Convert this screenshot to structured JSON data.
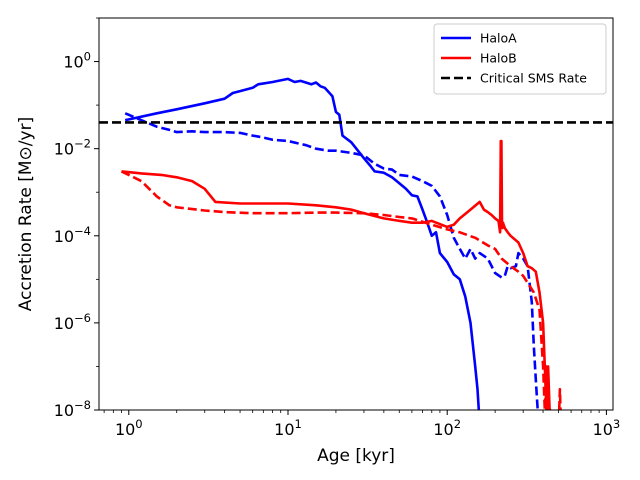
{
  "chart_data": {
    "type": "line",
    "xlabel": "Age [kyr]",
    "ylabel": "Accretion Rate [M⊙/yr]",
    "xscale": "log",
    "yscale": "log",
    "xlim": [
      0.65,
      1100
    ],
    "ylim": [
      1e-08,
      10
    ],
    "grid": false,
    "legend_position": "top-right",
    "x_ticks": [
      {
        "value": 1,
        "base": "10",
        "exp": "0"
      },
      {
        "value": 10,
        "base": "10",
        "exp": "1"
      },
      {
        "value": 100,
        "base": "10",
        "exp": "2"
      },
      {
        "value": 1000,
        "base": "10",
        "exp": "3"
      }
    ],
    "y_ticks": [
      {
        "value": 1,
        "base": "10",
        "exp": "0"
      },
      {
        "value": 0.01,
        "base": "10",
        "exp": "−2"
      },
      {
        "value": 0.0001,
        "base": "10",
        "exp": "−4"
      },
      {
        "value": 1e-06,
        "base": "10",
        "exp": "−6"
      },
      {
        "value": 1e-08,
        "base": "10",
        "exp": "−8"
      }
    ],
    "legend": [
      {
        "label": "HaloA",
        "color": "#0000ff",
        "dash": "solid"
      },
      {
        "label": "HaloB",
        "color": "#ff0000",
        "dash": "solid"
      },
      {
        "label": "Critical SMS Rate",
        "color": "#000000",
        "dash": "dashed"
      }
    ],
    "series": [
      {
        "name": "HaloA",
        "color": "#0000ff",
        "dash": "solid",
        "x": [
          0.95,
          1.5,
          2,
          3,
          4,
          4.5,
          5,
          6,
          6.5,
          8,
          10,
          11,
          12,
          14,
          15,
          16,
          17,
          18,
          19,
          20,
          21,
          22,
          25,
          30,
          33,
          35,
          40,
          45,
          50,
          55,
          60,
          65,
          70,
          75,
          80,
          85,
          90,
          100,
          110,
          120,
          130,
          140,
          150,
          155,
          158,
          160
        ],
        "y": [
          0.045,
          0.065,
          0.08,
          0.11,
          0.14,
          0.19,
          0.21,
          0.25,
          0.3,
          0.34,
          0.4,
          0.34,
          0.36,
          0.3,
          0.33,
          0.27,
          0.25,
          0.2,
          0.16,
          0.07,
          0.06,
          0.02,
          0.014,
          0.006,
          0.004,
          0.003,
          0.0028,
          0.0022,
          0.0016,
          0.0012,
          0.00085,
          0.0008,
          0.0004,
          0.0002,
          0.0001,
          0.00012,
          4e-05,
          2.5e-05,
          1.3e-05,
          1e-05,
          4e-06,
          1e-06,
          1e-07,
          3e-08,
          1e-08,
          1e-08
        ]
      },
      {
        "name": "HaloA (dashed)",
        "color": "#0000ff",
        "dash": "dashed",
        "x": [
          0.95,
          1.2,
          1.5,
          1.8,
          2,
          2.5,
          3,
          4,
          5,
          6,
          7,
          8,
          10,
          13,
          15,
          18,
          20,
          25,
          30,
          35,
          40,
          45,
          50,
          60,
          70,
          80,
          90,
          100,
          110,
          120,
          130,
          140,
          150,
          160,
          180,
          200,
          220,
          230,
          240,
          250,
          270,
          280,
          300,
          320,
          340,
          350,
          360,
          370,
          375,
          380
        ],
        "y": [
          0.065,
          0.045,
          0.032,
          0.027,
          0.024,
          0.025,
          0.024,
          0.024,
          0.023,
          0.02,
          0.018,
          0.016,
          0.015,
          0.012,
          0.01,
          0.009,
          0.009,
          0.008,
          0.007,
          0.0045,
          0.0035,
          0.0033,
          0.0025,
          0.0023,
          0.0018,
          0.0014,
          0.0008,
          0.0003,
          9e-05,
          5e-05,
          3e-05,
          5e-05,
          3e-05,
          4e-05,
          3e-05,
          1.4e-05,
          1.1e-05,
          1.2e-05,
          2e-05,
          1.8e-05,
          2e-05,
          4e-05,
          3e-05,
          2e-05,
          3e-06,
          3e-07,
          5e-08,
          1e-08,
          1e-08,
          1e-08
        ]
      },
      {
        "name": "HaloB",
        "color": "#ff0000",
        "dash": "solid",
        "x": [
          0.9,
          1.2,
          1.6,
          2,
          2.5,
          3,
          3.5,
          5,
          10,
          15,
          20,
          25,
          30,
          40,
          50,
          60,
          70,
          80,
          100,
          110,
          120,
          140,
          160,
          170,
          180,
          190,
          200,
          210,
          215,
          217,
          219,
          221,
          222,
          224,
          226,
          230,
          240,
          250,
          280,
          300,
          320,
          340,
          360,
          380,
          400,
          410,
          420,
          430,
          440,
          445,
          450
        ],
        "y": [
          0.003,
          0.0027,
          0.0025,
          0.0022,
          0.0018,
          0.0012,
          0.0006,
          0.00055,
          0.00055,
          0.0005,
          0.00045,
          0.0004,
          0.00033,
          0.00025,
          0.00022,
          0.0002,
          0.0002,
          0.00022,
          0.00016,
          0.00018,
          0.00025,
          0.0004,
          0.0006,
          0.0004,
          0.00035,
          0.0003,
          0.00025,
          0.00022,
          0.00012,
          0.015,
          0.015,
          0.0002,
          0.00015,
          0.0002,
          0.00018,
          0.00015,
          0.00012,
          0.0001,
          7e-05,
          4e-05,
          2e-05,
          1.8e-05,
          1.5e-05,
          5e-06,
          1e-06,
          1e-07,
          1e-08,
          1e-07,
          1e-08,
          1e-08,
          1e-08
        ]
      },
      {
        "name": "HaloB (dashed)",
        "color": "#ff0000",
        "dash": "dashed",
        "x": [
          0.9,
          1.2,
          1.5,
          1.8,
          2,
          3,
          4,
          6,
          10,
          15,
          20,
          30,
          40,
          50,
          60,
          80,
          100,
          120,
          150,
          180,
          200,
          220,
          250,
          280,
          300,
          350,
          380,
          400,
          410,
          420,
          430,
          440
        ],
        "y": [
          0.003,
          0.0018,
          0.0008,
          0.0005,
          0.00045,
          0.00038,
          0.00035,
          0.00033,
          0.00033,
          0.00034,
          0.00034,
          0.00033,
          0.0003,
          0.00027,
          0.00025,
          0.00018,
          0.00014,
          0.00012,
          9e-05,
          6e-05,
          5e-05,
          3e-05,
          2e-05,
          1.5e-05,
          1.2e-05,
          5e-06,
          2e-06,
          1e-07,
          1e-08,
          1e-07,
          1e-08,
          1e-08
        ]
      },
      {
        "name": "HaloB (dashed late)",
        "color": "#ff0000",
        "dash": "dashed",
        "x": [
          505,
          510,
          515,
          520
        ],
        "y": [
          1e-08,
          3e-08,
          1e-08,
          1e-08
        ]
      },
      {
        "name": "Critical SMS Rate",
        "color": "#000000",
        "dash": "dashed",
        "x": [
          0.65,
          1100
        ],
        "y": [
          0.04,
          0.04
        ]
      }
    ]
  }
}
